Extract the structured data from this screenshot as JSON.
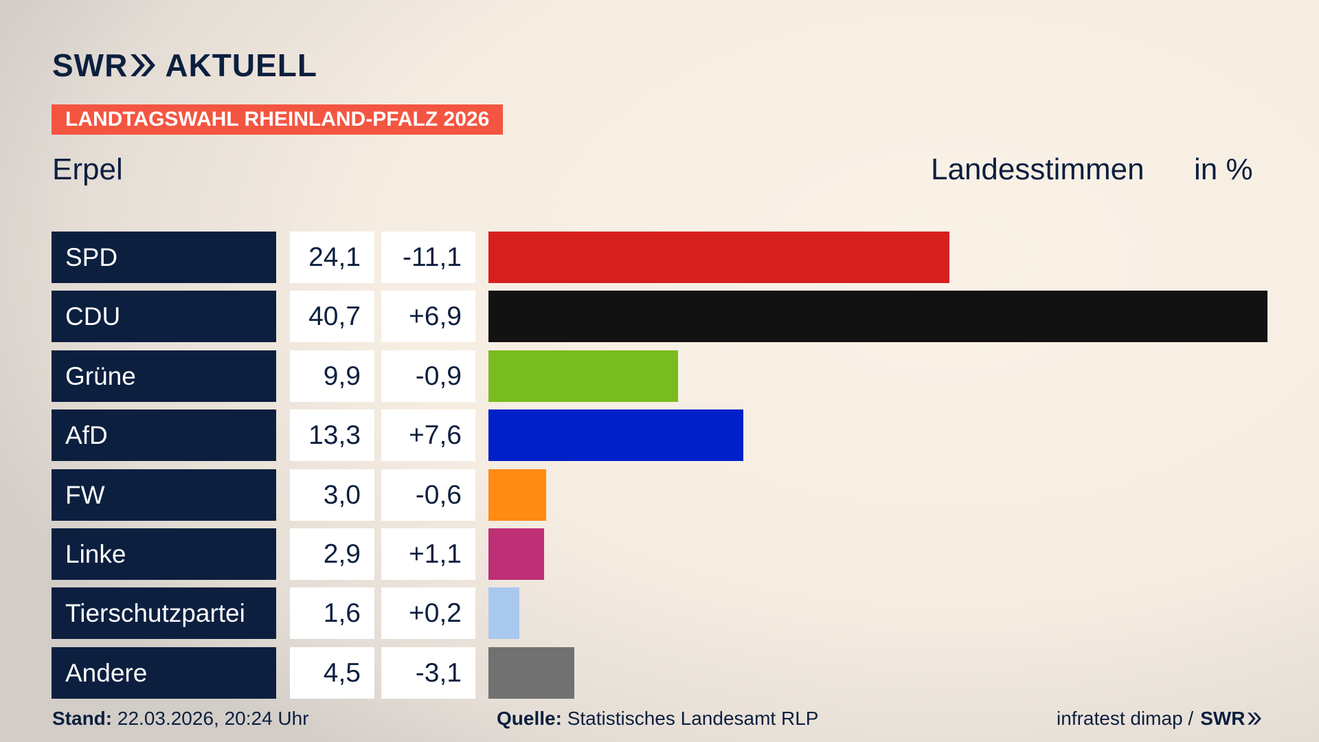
{
  "chart_data": {
    "type": "bar",
    "logo": "SWR",
    "logo_suffix": "AKTUELL",
    "banner": "LANDTAGSWAHL RHEINLAND-PFALZ 2026",
    "title": "Erpel",
    "measure": "Landesstimmen",
    "unit": "in %",
    "categories": [
      "SPD",
      "CDU",
      "Grüne",
      "AfD",
      "FW",
      "Linke",
      "Tierschutzpartei",
      "Andere"
    ],
    "values": [
      24.1,
      40.7,
      9.9,
      13.3,
      3.0,
      2.9,
      1.6,
      4.5
    ],
    "value_labels": [
      "24,1",
      "40,7",
      "9,9",
      "13,3",
      "3,0",
      "2,9",
      "1,6",
      "4,5"
    ],
    "changes": [
      -11.1,
      6.9,
      -0.9,
      7.6,
      -0.6,
      1.1,
      0.2,
      -3.1
    ],
    "change_labels": [
      "-11,1",
      "+6,9",
      "-0,9",
      "+7,6",
      "-0,6",
      "+1,1",
      "+0,2",
      "-3,1"
    ],
    "colors": [
      "#d71f1f",
      "#121212",
      "#78bc1e",
      "#0020c8",
      "#ff8a14",
      "#be3075",
      "#a9c8ee",
      "#717171"
    ],
    "footer": {
      "date_label": "Stand:",
      "date": "22.03.2026, 20:24 Uhr",
      "source_label": "Quelle:",
      "source": "Statistisches Landesamt RLP",
      "credit": "infratest dimap /",
      "credit_logo": "SWR"
    }
  }
}
